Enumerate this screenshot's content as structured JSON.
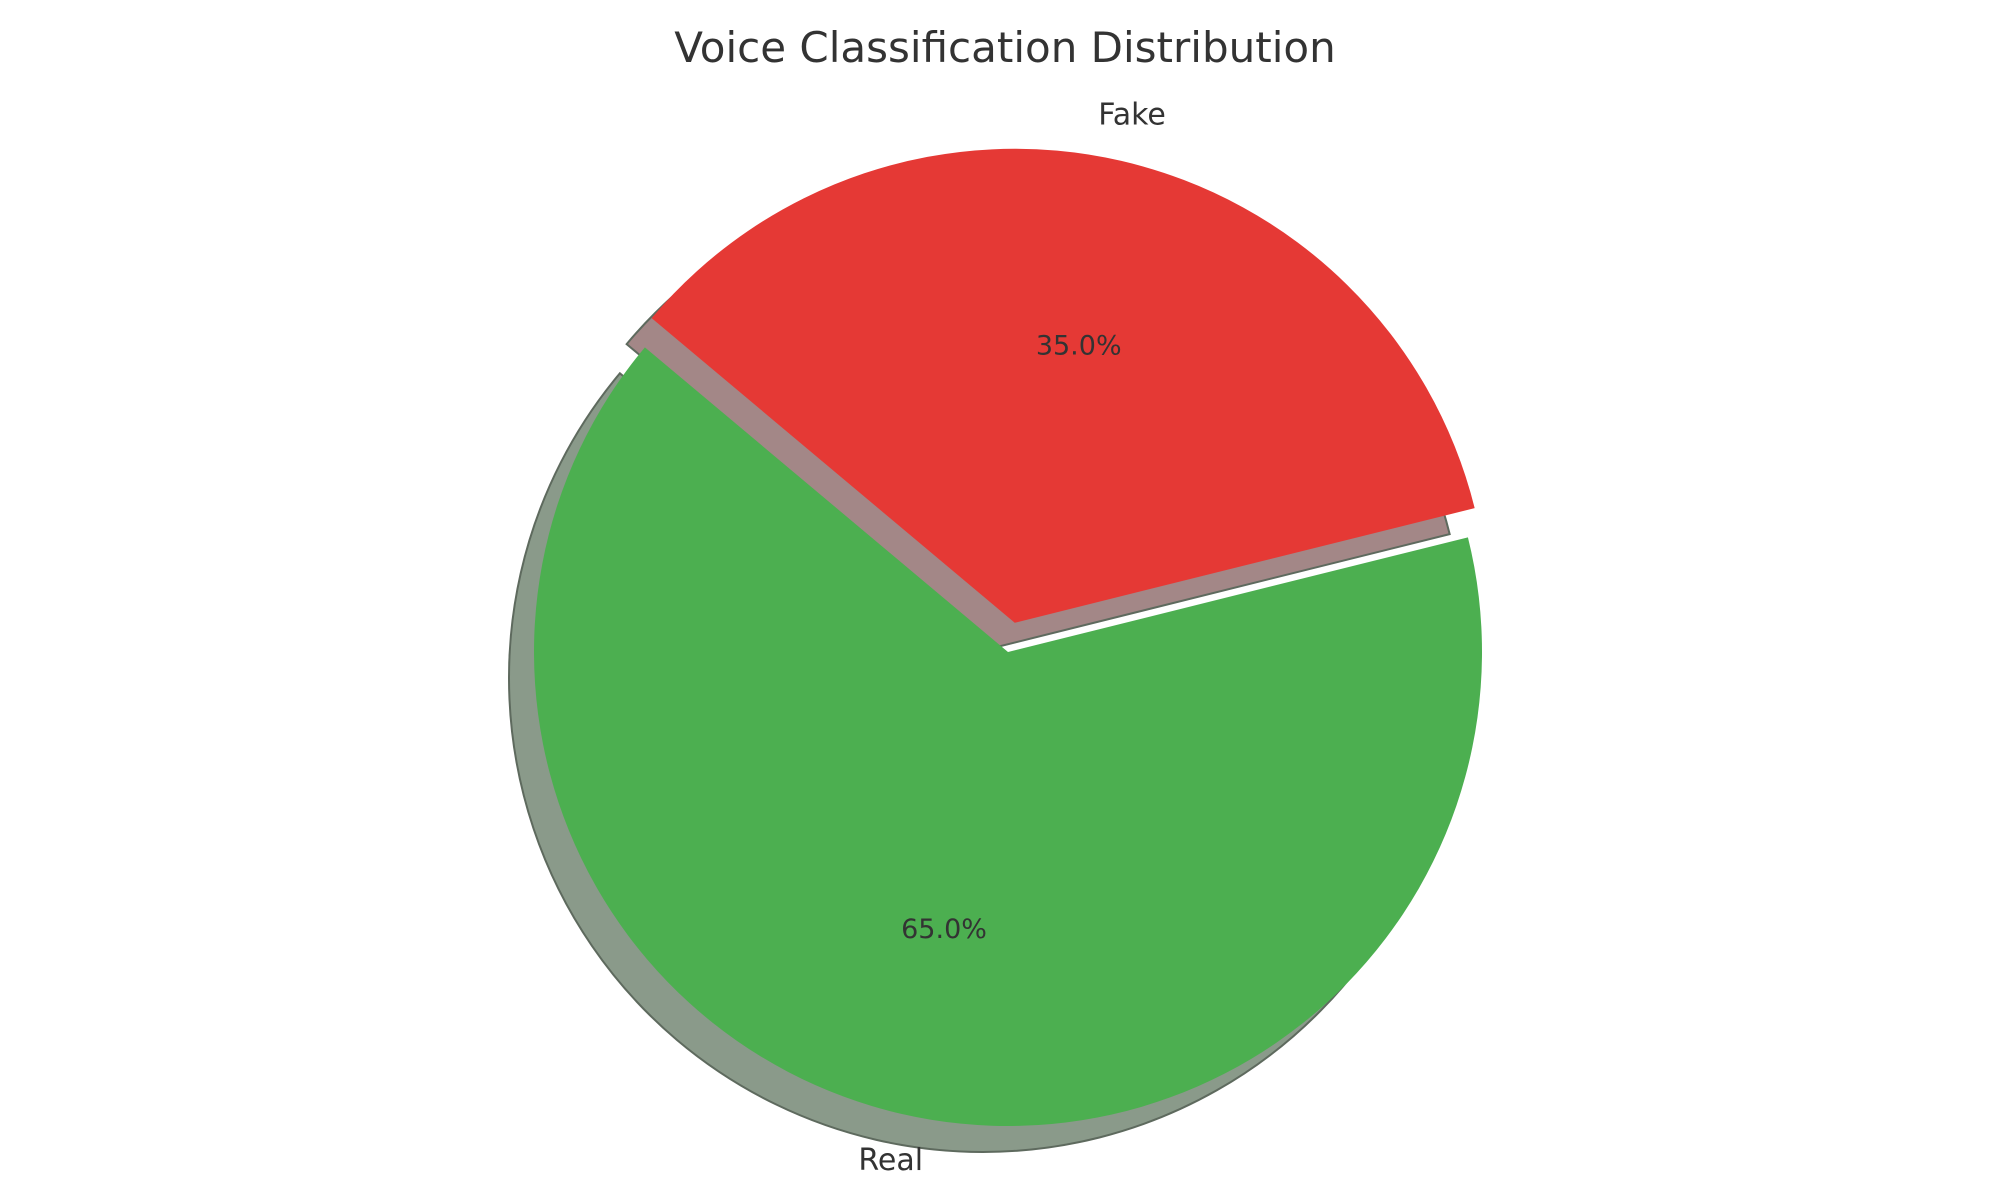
{
  "chart_data": {
    "type": "pie",
    "title": "Voice Classification Distribution",
    "slices": [
      {
        "label": "Real",
        "value": 65.0,
        "percent_label": "65.0%",
        "color": "#4caf50",
        "shadow_color": "#8a9a8a",
        "exploded": false
      },
      {
        "label": "Fake",
        "value": 35.0,
        "percent_label": "35.0%",
        "color": "#e53935",
        "shadow_color": "#a38787",
        "exploded": true
      }
    ],
    "start_angle_deg": 140,
    "shadow": true
  }
}
